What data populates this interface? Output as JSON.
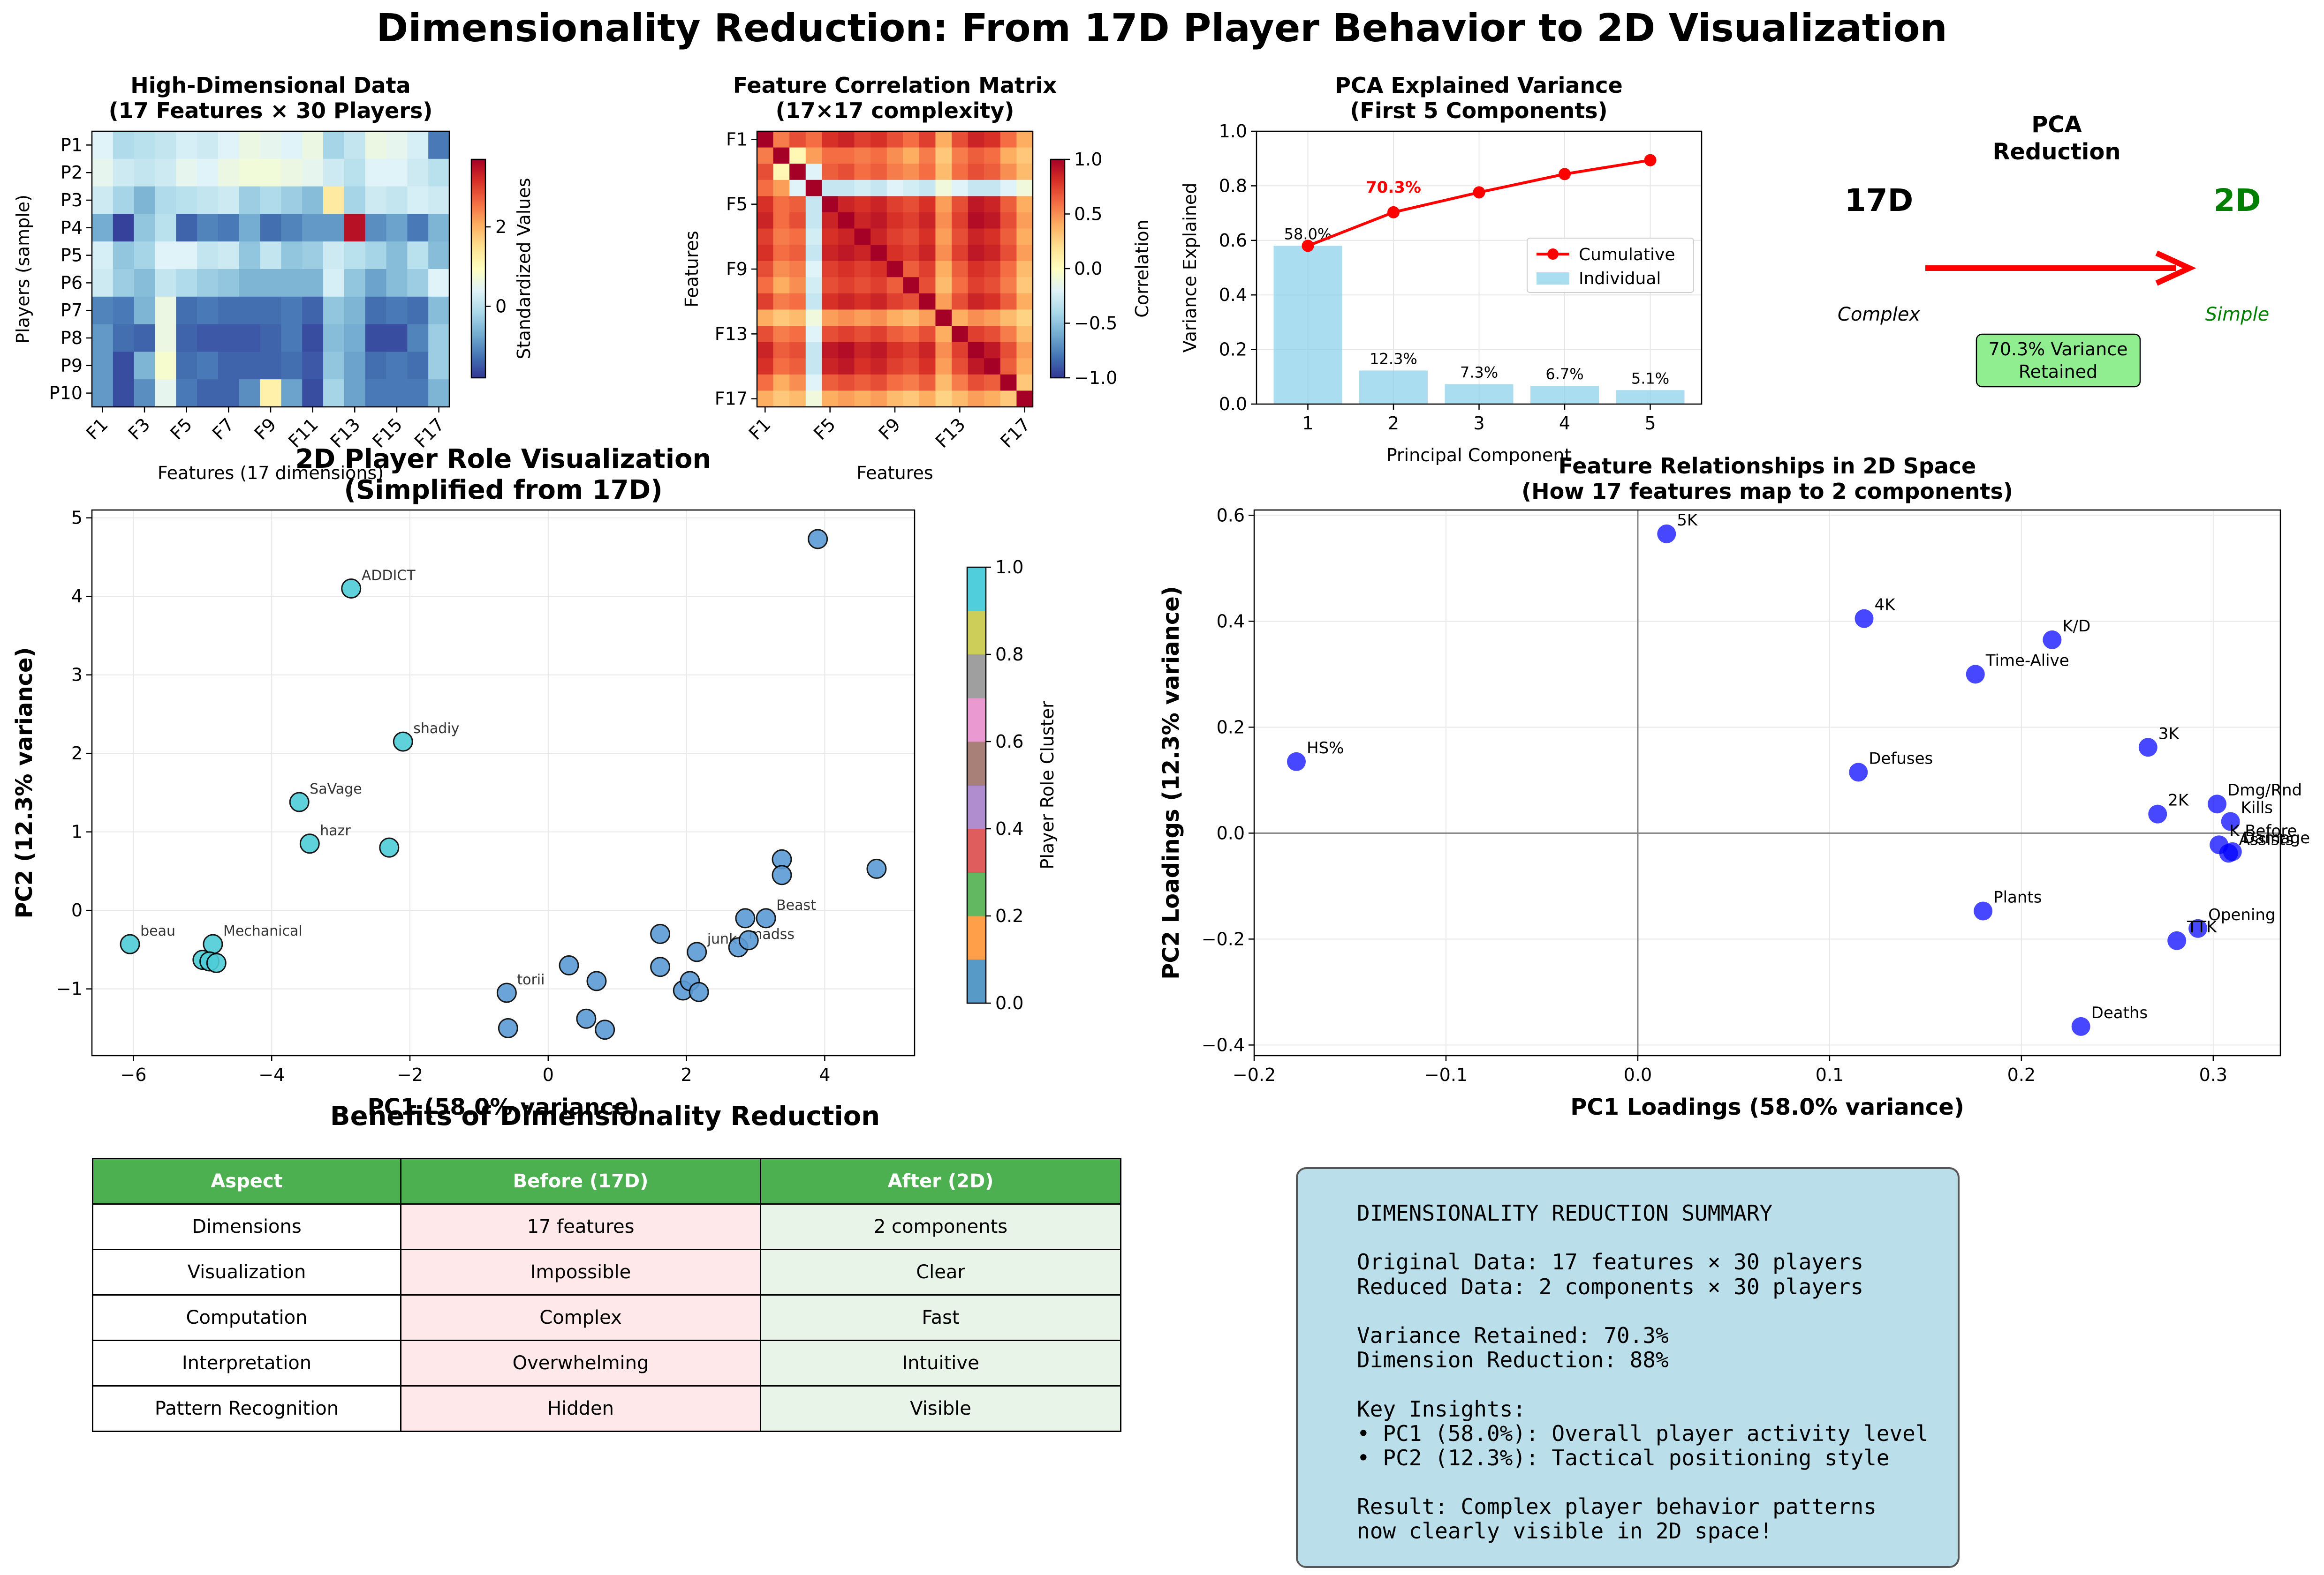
{
  "figure": {
    "title": "Dimensionality Reduction: From 17D Player Behavior to 2D Visualization"
  },
  "colors": {
    "pca_line": "#ff0000",
    "pca_bars": "#87ceeb",
    "loadings_points": "#0000ff",
    "table_header": "#4caf50",
    "table_before": "#ffe8ea",
    "table_after": "#e8f4e8",
    "summary_box": "#add8e6",
    "arrow": "#ff0000",
    "simple_text": "#008000",
    "variance_box": "#90ee90"
  },
  "chart_data": [
    {
      "id": "heatmap",
      "type": "heatmap",
      "title": "High-Dimensional Data",
      "subtitle": "(17 Features × 30 Players)",
      "xlabel": "Features (17 dimensions)",
      "ylabel": "Players (sample)",
      "x_ticklabels": [
        "F1",
        "F3",
        "F5",
        "F7",
        "F9",
        "F11",
        "F13",
        "F15",
        "F17"
      ],
      "y_ticklabels": [
        "P1",
        "P2",
        "P3",
        "P4",
        "P5",
        "P6",
        "P7",
        "P8",
        "P9",
        "P10"
      ],
      "colorbar_label": "Standardized Values",
      "colorbar_ticks": [
        "2",
        "0"
      ],
      "colormap": "RdYlBu_r",
      "vmin": -1.8,
      "vmax": 3.7,
      "values": [
        [
          0.4,
          -0.1,
          0.0,
          0.1,
          0.3,
          0.2,
          0.4,
          0.6,
          0.5,
          0.4,
          0.6,
          -0.2,
          0.1,
          0.6,
          0.5,
          0.3,
          -1.2
        ],
        [
          0.5,
          0.2,
          0.1,
          0.2,
          0.5,
          0.4,
          0.6,
          0.7,
          0.7,
          0.6,
          0.5,
          0.2,
          0.0,
          0.4,
          0.4,
          0.2,
          0.0
        ],
        [
          0.2,
          -0.2,
          -0.6,
          -0.1,
          0.0,
          0.1,
          0.2,
          -0.3,
          -0.1,
          -0.3,
          -0.5,
          1.3,
          -0.2,
          0.2,
          0.1,
          0.3,
          0.2
        ],
        [
          -0.7,
          -1.7,
          -0.4,
          0.0,
          -1.4,
          -1.1,
          -1.2,
          -0.7,
          -1.3,
          -1.1,
          -0.9,
          -0.9,
          3.5,
          -1.0,
          -0.8,
          -1.2,
          -0.6
        ],
        [
          0.3,
          -0.4,
          -0.2,
          0.4,
          0.4,
          0.1,
          0.2,
          -0.4,
          0.1,
          -0.4,
          -0.3,
          0.2,
          0.0,
          -0.2,
          -0.5,
          0.0,
          -0.5
        ],
        [
          0.2,
          -0.3,
          -0.5,
          0.1,
          -0.1,
          -0.3,
          -0.4,
          -0.6,
          -0.6,
          -0.6,
          -0.6,
          0.3,
          -0.4,
          -0.8,
          -0.5,
          -0.3,
          0.4
        ],
        [
          -1.1,
          -1.2,
          -0.6,
          0.6,
          -1.3,
          -1.2,
          -1.3,
          -1.3,
          -1.3,
          -1.2,
          -1.4,
          -0.4,
          -0.6,
          -1.3,
          -1.2,
          -1.3,
          -0.5
        ],
        [
          -0.9,
          -1.3,
          -1.4,
          0.6,
          -1.4,
          -1.5,
          -1.5,
          -1.5,
          -1.4,
          -1.2,
          -1.6,
          -0.5,
          -0.7,
          -1.6,
          -1.6,
          -1.1,
          -0.3
        ],
        [
          -0.9,
          -1.6,
          -0.6,
          0.8,
          -1.3,
          -1.2,
          -1.4,
          -1.4,
          -1.4,
          -1.3,
          -1.5,
          -0.4,
          -0.8,
          -1.3,
          -1.2,
          -1.3,
          -0.3
        ],
        [
          -0.9,
          -1.6,
          -1.0,
          0.5,
          -1.2,
          -1.4,
          -1.4,
          -1.0,
          1.2,
          -0.8,
          -1.6,
          -0.2,
          -0.8,
          -1.2,
          -1.2,
          -1.2,
          -0.6
        ]
      ]
    },
    {
      "id": "correlation",
      "type": "heatmap",
      "title": "Feature Correlation Matrix",
      "subtitle": "(17×17 complexity)",
      "xlabel": "Features",
      "ylabel": "Features",
      "x_ticklabels": [
        "F1",
        "F5",
        "F9",
        "F13",
        "F17"
      ],
      "y_ticklabels": [
        "F1",
        "F5",
        "F9",
        "F13",
        "F17"
      ],
      "colorbar_label": "Correlation",
      "colorbar_ticks": [
        "1.0",
        "0.5",
        "0.0",
        "−0.5",
        "−1.0"
      ],
      "colormap": "RdYlBu_r",
      "vmin": -1.0,
      "vmax": 1.0,
      "values": [
        [
          1.0,
          0.55,
          0.7,
          0.6,
          0.8,
          0.85,
          0.75,
          0.8,
          0.7,
          0.6,
          0.75,
          0.4,
          0.7,
          0.85,
          0.8,
          0.6,
          0.4
        ],
        [
          0.55,
          1.0,
          0.05,
          0.45,
          0.6,
          0.6,
          0.55,
          0.6,
          0.5,
          0.4,
          0.55,
          0.3,
          0.55,
          0.65,
          0.6,
          0.4,
          0.3
        ],
        [
          0.7,
          0.05,
          1.0,
          -0.2,
          0.65,
          0.7,
          0.6,
          0.65,
          0.55,
          0.5,
          0.6,
          0.35,
          0.6,
          0.7,
          0.65,
          0.5,
          0.35
        ],
        [
          0.6,
          0.45,
          -0.2,
          1.0,
          -0.3,
          -0.3,
          -0.25,
          -0.3,
          -0.2,
          -0.25,
          -0.3,
          -0.1,
          -0.2,
          -0.3,
          -0.3,
          -0.2,
          -0.1
        ],
        [
          0.8,
          0.6,
          0.65,
          -0.3,
          1.0,
          0.85,
          0.8,
          0.85,
          0.75,
          0.7,
          0.8,
          0.45,
          0.7,
          0.9,
          0.85,
          0.65,
          0.4
        ],
        [
          0.85,
          0.6,
          0.7,
          -0.3,
          0.85,
          1.0,
          0.85,
          0.9,
          0.8,
          0.75,
          0.85,
          0.5,
          0.75,
          0.95,
          0.9,
          0.7,
          0.45
        ],
        [
          0.75,
          0.55,
          0.6,
          -0.25,
          0.8,
          0.85,
          1.0,
          0.85,
          0.75,
          0.7,
          0.8,
          0.45,
          0.7,
          0.85,
          0.8,
          0.65,
          0.4
        ],
        [
          0.8,
          0.6,
          0.65,
          -0.3,
          0.85,
          0.9,
          0.85,
          1.0,
          0.8,
          0.75,
          0.85,
          0.5,
          0.75,
          0.9,
          0.85,
          0.7,
          0.45
        ],
        [
          0.7,
          0.5,
          0.55,
          -0.2,
          0.75,
          0.8,
          0.75,
          0.8,
          1.0,
          0.65,
          0.75,
          0.4,
          0.65,
          0.8,
          0.75,
          0.6,
          0.35
        ],
        [
          0.6,
          0.4,
          0.5,
          -0.25,
          0.7,
          0.75,
          0.7,
          0.75,
          0.65,
          1.0,
          0.7,
          0.35,
          0.6,
          0.75,
          0.7,
          0.55,
          0.3
        ],
        [
          0.75,
          0.55,
          0.6,
          -0.3,
          0.8,
          0.85,
          0.8,
          0.85,
          0.75,
          0.7,
          1.0,
          0.45,
          0.7,
          0.85,
          0.8,
          0.65,
          0.4
        ],
        [
          0.4,
          0.3,
          0.35,
          -0.1,
          0.45,
          0.5,
          0.45,
          0.5,
          0.4,
          0.35,
          0.45,
          1.0,
          0.4,
          0.5,
          0.45,
          0.35,
          0.25
        ],
        [
          0.7,
          0.55,
          0.6,
          -0.2,
          0.7,
          0.75,
          0.7,
          0.75,
          0.65,
          0.6,
          0.7,
          0.4,
          1.0,
          0.75,
          0.7,
          0.55,
          0.35
        ],
        [
          0.85,
          0.65,
          0.7,
          -0.3,
          0.9,
          0.95,
          0.85,
          0.9,
          0.8,
          0.75,
          0.85,
          0.5,
          0.75,
          1.0,
          0.9,
          0.7,
          0.45
        ],
        [
          0.8,
          0.6,
          0.65,
          -0.3,
          0.85,
          0.9,
          0.8,
          0.85,
          0.75,
          0.7,
          0.8,
          0.45,
          0.7,
          0.9,
          1.0,
          0.65,
          0.4
        ],
        [
          0.6,
          0.4,
          0.5,
          -0.2,
          0.65,
          0.7,
          0.65,
          0.7,
          0.6,
          0.55,
          0.65,
          0.35,
          0.55,
          0.7,
          0.65,
          1.0,
          0.3
        ],
        [
          0.4,
          0.3,
          0.35,
          -0.1,
          0.4,
          0.45,
          0.4,
          0.45,
          0.35,
          0.3,
          0.4,
          0.25,
          0.35,
          0.45,
          0.4,
          0.3,
          1.0
        ]
      ]
    },
    {
      "id": "pca_variance",
      "type": "bar",
      "title": "PCA Explained Variance",
      "subtitle": "(First 5 Components)",
      "xlabel": "Principal Component",
      "ylabel": "Variance Explained",
      "categories": [
        "1",
        "2",
        "3",
        "4",
        "5"
      ],
      "ylim": [
        0,
        1.0
      ],
      "yticks": [
        "0.0",
        "0.2",
        "0.4",
        "0.6",
        "0.8",
        "1.0"
      ],
      "grid": true,
      "legend_position": "center-right",
      "series": [
        {
          "name": "Individual",
          "type": "bar",
          "values": [
            0.58,
            0.123,
            0.073,
            0.067,
            0.051
          ],
          "labels": [
            "58.0%",
            "12.3%",
            "7.3%",
            "6.7%",
            "5.1%"
          ]
        },
        {
          "name": "Cumulative",
          "type": "line",
          "values": [
            0.58,
            0.703,
            0.776,
            0.843,
            0.894
          ]
        }
      ],
      "annotation": "70.3%"
    },
    {
      "id": "player_scatter",
      "type": "scatter",
      "title": "2D Player Role Visualization",
      "subtitle": "(Simplified from 17D)",
      "xlabel": "PC1 (58.0% variance)",
      "ylabel": "PC2 (12.3% variance)",
      "xlim": [
        -6.6,
        5.3
      ],
      "ylim": [
        -1.85,
        5.1
      ],
      "xticks": [
        "−6",
        "−4",
        "−2",
        "0",
        "2",
        "4"
      ],
      "yticks": [
        "−1",
        "0",
        "1",
        "2",
        "3",
        "4",
        "5"
      ],
      "grid": true,
      "colorbar_label": "Player Role Cluster",
      "colorbar_ticks": [
        "0.0",
        "0.2",
        "0.4",
        "0.6",
        "0.8",
        "1.0"
      ],
      "cluster_colors": [
        "#5b9bd5",
        "#4ecdd8"
      ],
      "points": [
        {
          "x": -6.05,
          "y": -0.43,
          "cluster": 1,
          "label": "beau"
        },
        {
          "x": -4.85,
          "y": -0.43,
          "cluster": 1,
          "label": "Mechanical"
        },
        {
          "x": -5.0,
          "y": -0.63,
          "cluster": 1,
          "label": ""
        },
        {
          "x": -4.9,
          "y": -0.65,
          "cluster": 1,
          "label": ""
        },
        {
          "x": -4.8,
          "y": -0.67,
          "cluster": 1,
          "label": ""
        },
        {
          "x": -3.6,
          "y": 1.38,
          "cluster": 1,
          "label": "SaVage"
        },
        {
          "x": -3.45,
          "y": 0.85,
          "cluster": 1,
          "label": "hazr"
        },
        {
          "x": -2.85,
          "y": 4.1,
          "cluster": 1,
          "label": "ADDICT"
        },
        {
          "x": -2.3,
          "y": 0.8,
          "cluster": 1,
          "label": ""
        },
        {
          "x": -2.1,
          "y": 2.15,
          "cluster": 1,
          "label": "shadiy"
        },
        {
          "x": -0.6,
          "y": -1.05,
          "cluster": 0,
          "label": "torii"
        },
        {
          "x": -0.58,
          "y": -1.5,
          "cluster": 0,
          "label": ""
        },
        {
          "x": 0.3,
          "y": -0.7,
          "cluster": 0,
          "label": ""
        },
        {
          "x": 0.55,
          "y": -1.38,
          "cluster": 0,
          "label": ""
        },
        {
          "x": 0.7,
          "y": -0.9,
          "cluster": 0,
          "label": ""
        },
        {
          "x": 0.82,
          "y": -1.52,
          "cluster": 0,
          "label": ""
        },
        {
          "x": 1.62,
          "y": -0.3,
          "cluster": 0,
          "label": ""
        },
        {
          "x": 1.62,
          "y": -0.72,
          "cluster": 0,
          "label": ""
        },
        {
          "x": 1.95,
          "y": -1.02,
          "cluster": 0,
          "label": ""
        },
        {
          "x": 2.05,
          "y": -0.9,
          "cluster": 0,
          "label": ""
        },
        {
          "x": 2.15,
          "y": -0.53,
          "cluster": 0,
          "label": "junk"
        },
        {
          "x": 2.18,
          "y": -1.04,
          "cluster": 0,
          "label": ""
        },
        {
          "x": 2.75,
          "y": -0.47,
          "cluster": 0,
          "label": "madss"
        },
        {
          "x": 2.85,
          "y": -0.1,
          "cluster": 0,
          "label": ""
        },
        {
          "x": 2.9,
          "y": -0.38,
          "cluster": 0,
          "label": ""
        },
        {
          "x": 3.15,
          "y": -0.1,
          "cluster": 0,
          "label": "Beast"
        },
        {
          "x": 3.38,
          "y": 0.65,
          "cluster": 0,
          "label": ""
        },
        {
          "x": 3.38,
          "y": 0.45,
          "cluster": 0,
          "label": ""
        },
        {
          "x": 3.9,
          "y": 4.73,
          "cluster": 0,
          "label": ""
        },
        {
          "x": 4.75,
          "y": 0.53,
          "cluster": 0,
          "label": ""
        }
      ]
    },
    {
      "id": "pca_flow",
      "type": "diagram",
      "title": "PCA\nReduction",
      "left_label": "17D",
      "left_caption": "Complex",
      "right_label": "2D",
      "right_caption": "Simple",
      "box_text": "70.3% Variance\nRetained"
    },
    {
      "id": "loadings",
      "type": "scatter",
      "title": "Feature Relationships in 2D Space",
      "subtitle": "(How 17 features map to 2 components)",
      "xlabel": "PC1 Loadings (58.0% variance)",
      "ylabel": "PC2 Loadings (12.3% variance)",
      "xlim": [
        -0.2,
        0.335
      ],
      "ylim": [
        -0.42,
        0.61
      ],
      "xticks": [
        "−0.2",
        "−0.1",
        "0.0",
        "0.1",
        "0.2",
        "0.3"
      ],
      "yticks": [
        "−0.4",
        "−0.2",
        "0.0",
        "0.2",
        "0.4",
        "0.6"
      ],
      "grid": true,
      "points": [
        {
          "x": 0.015,
          "y": 0.565,
          "label": "5K"
        },
        {
          "x": 0.118,
          "y": 0.405,
          "label": "4K"
        },
        {
          "x": 0.216,
          "y": 0.365,
          "label": "K/D"
        },
        {
          "x": 0.176,
          "y": 0.3,
          "label": "Time-Alive"
        },
        {
          "x": -0.178,
          "y": 0.135,
          "label": "HS%"
        },
        {
          "x": 0.115,
          "y": 0.115,
          "label": "Defuses"
        },
        {
          "x": 0.266,
          "y": 0.162,
          "label": "3K"
        },
        {
          "x": 0.302,
          "y": 0.055,
          "label": "Dmg/Rnd"
        },
        {
          "x": 0.271,
          "y": 0.036,
          "label": "2K"
        },
        {
          "x": 0.309,
          "y": 0.022,
          "label": "Kills"
        },
        {
          "x": 0.303,
          "y": -0.022,
          "label": "K Before"
        },
        {
          "x": 0.31,
          "y": -0.035,
          "label": "Damage"
        },
        {
          "x": 0.308,
          "y": -0.038,
          "label": "Assists"
        },
        {
          "x": 0.18,
          "y": -0.147,
          "label": "Plants"
        },
        {
          "x": 0.292,
          "y": -0.18,
          "label": "Opening"
        },
        {
          "x": 0.281,
          "y": -0.203,
          "label": "TTK"
        },
        {
          "x": 0.231,
          "y": -0.365,
          "label": "Deaths"
        }
      ]
    }
  ],
  "benefits_table": {
    "title": "Benefits of Dimensionality Reduction",
    "headers": [
      "Aspect",
      "Before (17D)",
      "After (2D)"
    ],
    "rows": [
      [
        "Dimensions",
        "17 features",
        "2 components"
      ],
      [
        "Visualization",
        "Impossible",
        "Clear"
      ],
      [
        "Computation",
        "Complex",
        "Fast"
      ],
      [
        "Interpretation",
        "Overwhelming",
        "Intuitive"
      ],
      [
        "Pattern Recognition",
        "Hidden",
        "Visible"
      ]
    ]
  },
  "summary": {
    "lines": [
      "DIMENSIONALITY REDUCTION SUMMARY",
      "",
      "Original Data: 17 features × 30 players",
      "Reduced Data: 2 components × 30 players",
      "",
      "Variance Retained: 70.3%",
      "Dimension Reduction: 88%",
      "",
      "Key Insights:",
      "• PC1 (58.0%): Overall player activity level",
      "• PC2 (12.3%): Tactical positioning style",
      "",
      "Result: Complex player behavior patterns",
      "now clearly visible in 2D space!"
    ]
  }
}
